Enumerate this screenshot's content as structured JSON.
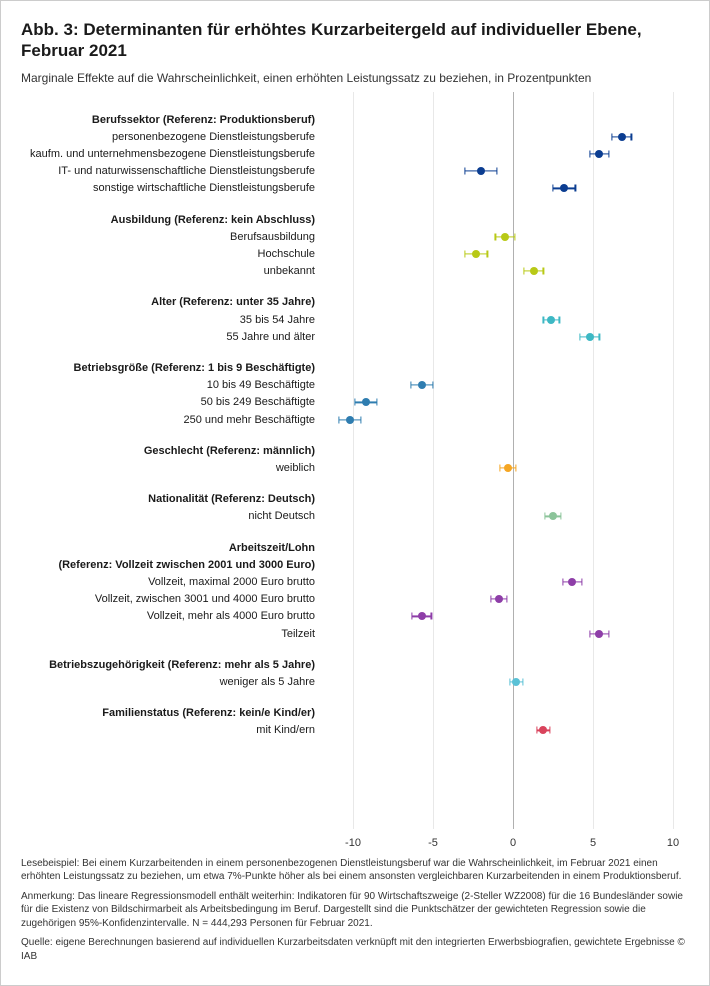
{
  "title": "Abb. 3: Determinanten für erhöhtes Kurzarbeitergeld auf individueller Ebene, Februar 2021",
  "subtitle": "Marginale Effekte auf die Wahrscheinlichkeit, einen erhöhten Leistungssatz zu beziehen, in Prozentpunkten",
  "chart": {
    "type": "dot-whisker",
    "xlim": [
      -12,
      11
    ],
    "xticks": [
      -10,
      -5,
      0,
      5,
      10
    ],
    "background_color": "#ffffff",
    "grid_color": "#e8e8e8",
    "zero_color": "#b0b0b0",
    "label_fontsize": 11,
    "header_fontweight": 700,
    "marker_radius": 4,
    "whisker_width": 1.2,
    "cap_height": 7,
    "row_height": 17.2,
    "plot_top_pad": 28,
    "group_gap": 14,
    "groups": [
      {
        "header": "Berufssektor (Referenz: Produktionsberuf)",
        "color": "#0b3d91",
        "items": [
          {
            "label": "personenbezogene Dienstleistungsberufe",
            "est": 6.8,
            "lo": 6.2,
            "hi": 7.4
          },
          {
            "label": "kaufm. und unternehmensbezogene Dienstleistungsberufe",
            "est": 5.4,
            "lo": 4.8,
            "hi": 6.0
          },
          {
            "label": "IT- und naturwissenschaftliche Dienstleistungsberufe",
            "est": -2.0,
            "lo": -3.0,
            "hi": -1.0
          },
          {
            "label": "sonstige wirtschaftliche Dienstleistungsberufe",
            "est": 3.2,
            "lo": 2.5,
            "hi": 3.9
          }
        ]
      },
      {
        "header": "Ausbildung (Referenz: kein Abschluss)",
        "color": "#b8c916",
        "items": [
          {
            "label": "Berufsausbildung",
            "est": -0.5,
            "lo": -1.1,
            "hi": 0.1
          },
          {
            "label": "Hochschule",
            "est": -2.3,
            "lo": -3.0,
            "hi": -1.6
          },
          {
            "label": "unbekannt",
            "est": 1.3,
            "lo": 0.7,
            "hi": 1.9
          }
        ]
      },
      {
        "header": "Alter (Referenz: unter 35 Jahre)",
        "color": "#3db8c4",
        "items": [
          {
            "label": "35 bis 54 Jahre",
            "est": 2.4,
            "lo": 1.9,
            "hi": 2.9
          },
          {
            "label": "55 Jahre und älter",
            "est": 4.8,
            "lo": 4.2,
            "hi": 5.4
          }
        ]
      },
      {
        "header": "Betriebsgröße (Referenz: 1 bis 9 Beschäftigte)",
        "color": "#2f7db0",
        "items": [
          {
            "label": "10 bis 49 Beschäftigte",
            "est": -5.7,
            "lo": -6.4,
            "hi": -5.0
          },
          {
            "label": "50 bis 249 Beschäftigte",
            "est": -9.2,
            "lo": -9.9,
            "hi": -8.5
          },
          {
            "label": "250 und mehr Beschäftigte",
            "est": -10.2,
            "lo": -10.9,
            "hi": -9.5
          }
        ]
      },
      {
        "header": "Geschlecht (Referenz: männlich)",
        "color": "#f5a623",
        "items": [
          {
            "label": "weiblich",
            "est": -0.3,
            "lo": -0.8,
            "hi": 0.2
          }
        ]
      },
      {
        "header": "Nationalität (Referenz: Deutsch)",
        "color": "#8cc49a",
        "items": [
          {
            "label": "nicht Deutsch",
            "est": 2.5,
            "lo": 2.0,
            "hi": 3.0
          }
        ]
      },
      {
        "header": "Arbeitszeit/Lohn",
        "subheader": "(Referenz: Vollzeit zwischen 2001 und 3000 Euro)",
        "color": "#8e3ea8",
        "items": [
          {
            "label": "Vollzeit, maximal 2000 Euro brutto",
            "est": 3.7,
            "lo": 3.1,
            "hi": 4.3
          },
          {
            "label": "Vollzeit, zwischen 3001 und 4000 Euro brutto",
            "est": -0.9,
            "lo": -1.4,
            "hi": -0.4
          },
          {
            "label": "Vollzeit, mehr als 4000 Euro brutto",
            "est": -5.7,
            "lo": -6.3,
            "hi": -5.1
          },
          {
            "label": "Teilzeit",
            "est": 5.4,
            "lo": 4.8,
            "hi": 6.0
          }
        ]
      },
      {
        "header": "Betriebszugehörigkeit (Referenz: mehr als 5 Jahre)",
        "color": "#5ac1d6",
        "items": [
          {
            "label": "weniger als 5 Jahre",
            "est": 0.2,
            "lo": -0.2,
            "hi": 0.6
          }
        ]
      },
      {
        "header": "Familienstatus (Referenz: kein/e Kind/er)",
        "color": "#d9435c",
        "items": [
          {
            "label": "mit Kind/ern",
            "est": 1.9,
            "lo": 1.5,
            "hi": 2.3
          }
        ]
      }
    ]
  },
  "footnotes": {
    "lesebeispiel": "Lesebeispiel: Bei einem Kurzarbeitenden in einem personenbezogenen Dienstleistungsberuf war die Wahrscheinlichkeit, im Februar 2021 einen erhöhten Leistungssatz zu beziehen, um etwa 7%-Punkte höher als bei einem ansonsten vergleichbaren Kurzarbeitenden in einem Produktionsberuf.",
    "anmerkung": "Anmerkung: Das lineare Regressionsmodell enthält weiterhin: Indikatoren für 90 Wirtschaftszweige (2-Steller WZ2008) für die 16 Bundesländer sowie für die Existenz von Bildschirmarbeit als Arbeitsbedingung im Beruf. Dargestellt sind die Punktschätzer der gewichteten Regression sowie die zugehörigen 95%-Konfidenzintervalle. N = 444,293 Personen für Februar 2021.",
    "quelle": "Quelle: eigene Berechnungen basierend auf individuellen Kurzarbeitsdaten verknüpft mit den integrierten Erwerbsbiografien, gewichtete Ergebnisse © IAB"
  }
}
